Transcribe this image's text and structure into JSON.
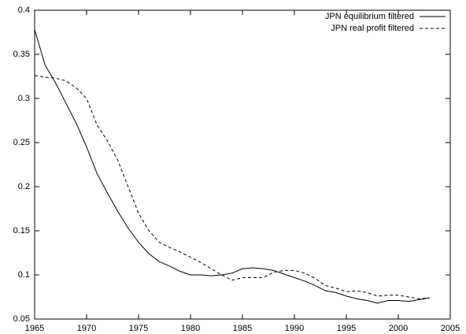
{
  "chart_data": {
    "type": "line",
    "x": [
      1965,
      1966,
      1967,
      1968,
      1969,
      1970,
      1971,
      1972,
      1973,
      1974,
      1975,
      1976,
      1977,
      1978,
      1979,
      1980,
      1981,
      1982,
      1983,
      1984,
      1985,
      1986,
      1987,
      1988,
      1989,
      1990,
      1991,
      1992,
      1993,
      1994,
      1995,
      1996,
      1997,
      1998,
      1999,
      2000,
      2001,
      2002,
      2003
    ],
    "series": [
      {
        "name": "JPN equilibrium filtered",
        "color": "#000000",
        "line_style": "solid",
        "values": [
          0.378,
          0.338,
          0.318,
          0.295,
          0.272,
          0.245,
          0.215,
          0.193,
          0.172,
          0.153,
          0.137,
          0.124,
          0.115,
          0.11,
          0.104,
          0.1,
          0.1,
          0.099,
          0.1,
          0.102,
          0.107,
          0.108,
          0.107,
          0.105,
          0.101,
          0.097,
          0.093,
          0.088,
          0.082,
          0.08,
          0.076,
          0.073,
          0.071,
          0.068,
          0.071,
          0.071,
          0.07,
          0.072,
          0.074
        ]
      },
      {
        "name": "JPN real profit filtered",
        "color": "#000000",
        "line_style": "dashed",
        "values": [
          0.326,
          0.324,
          0.323,
          0.32,
          0.312,
          0.3,
          0.27,
          0.252,
          0.23,
          0.2,
          0.17,
          0.15,
          0.137,
          0.131,
          0.126,
          0.12,
          0.114,
          0.107,
          0.1,
          0.094,
          0.097,
          0.097,
          0.097,
          0.103,
          0.105,
          0.105,
          0.102,
          0.096,
          0.088,
          0.085,
          0.081,
          0.082,
          0.08,
          0.076,
          0.077,
          0.077,
          0.075,
          0.073,
          0.074
        ]
      }
    ],
    "xlim": [
      1965,
      2005
    ],
    "xticks": [
      1965,
      1970,
      1975,
      1980,
      1985,
      1990,
      1995,
      2000,
      2005
    ],
    "ylim": [
      0.05,
      0.4
    ],
    "yticks": [
      0.05,
      0.1,
      0.15,
      0.2,
      0.25,
      0.3,
      0.35,
      0.4
    ],
    "grid": false,
    "legend": "top-right"
  }
}
